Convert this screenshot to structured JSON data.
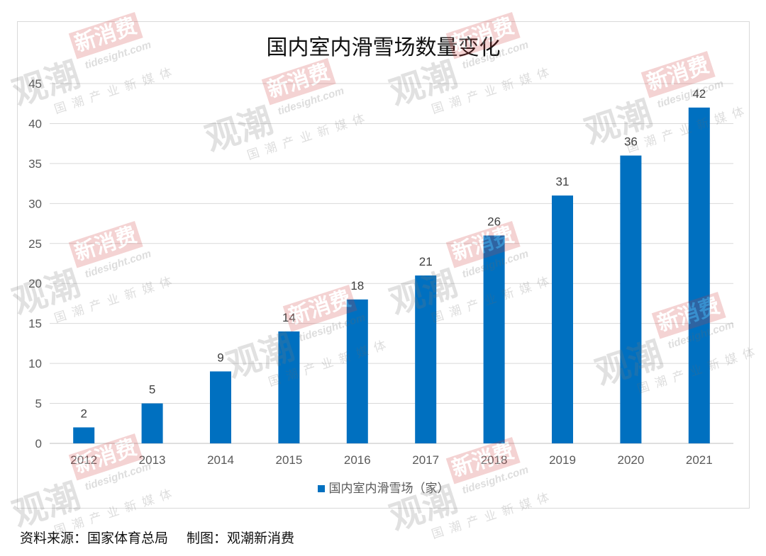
{
  "chart_data": {
    "type": "bar",
    "title": "国内室内滑雪场数量变化",
    "xlabel": "",
    "ylabel": "",
    "categories": [
      "2012",
      "2013",
      "2014",
      "2015",
      "2016",
      "2017",
      "2018",
      "2019",
      "2020",
      "2021"
    ],
    "series": [
      {
        "name": "国内室内滑雪场（家）",
        "values": [
          2,
          5,
          9,
          14,
          18,
          21,
          26,
          31,
          36,
          42
        ],
        "color": "#0070C0"
      }
    ],
    "ylim": [
      0,
      45
    ],
    "yticks": [
      0,
      5,
      10,
      15,
      20,
      25,
      30,
      35,
      40,
      45
    ],
    "grid": true,
    "legend": "bottom",
    "data_labels": true
  },
  "source": {
    "origin": "资料来源：国家体育总局",
    "credit": "制图：观潮新消费"
  },
  "watermark": {
    "main": "观潮",
    "badge": "新消费",
    "url": "tidesight.com",
    "tagline": "国潮产业新媒体"
  }
}
